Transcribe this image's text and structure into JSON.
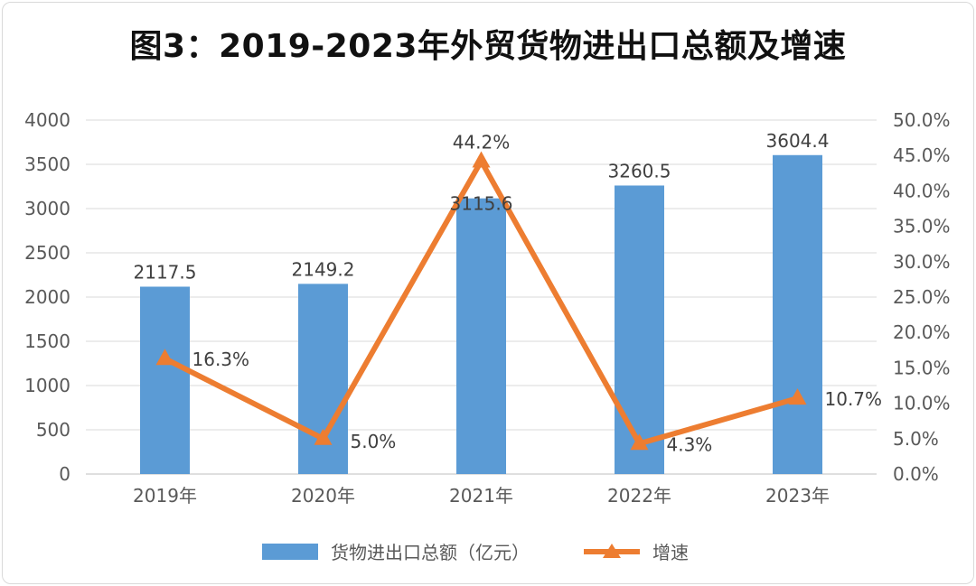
{
  "chart_data": {
    "type": "bar+line",
    "title": "图3：2019-2023年外贸货物进出口总额及增速",
    "categories": [
      "2019年",
      "2020年",
      "2021年",
      "2022年",
      "2023年"
    ],
    "series": [
      {
        "name": "货物进出口总额（亿元）",
        "type": "bar",
        "axis": "left",
        "values": [
          2117.5,
          2149.2,
          3115.6,
          3260.5,
          3604.4
        ],
        "labels": [
          "2117.5",
          "2149.2",
          "3115.6",
          "3260.5",
          "3604.4"
        ],
        "color": "#5B9BD5"
      },
      {
        "name": "增速",
        "type": "line",
        "axis": "right",
        "marker": "triangle",
        "values": [
          16.3,
          5.0,
          44.2,
          4.3,
          10.7
        ],
        "labels": [
          "16.3%",
          "5.0%",
          "44.2%",
          "4.3%",
          "10.7%"
        ],
        "color": "#ED7D31"
      }
    ],
    "left_axis": {
      "ylim": [
        0,
        4000
      ],
      "step": 500,
      "ticks": [
        "0",
        "500",
        "1000",
        "1500",
        "2000",
        "2500",
        "3000",
        "3500",
        "4000"
      ]
    },
    "right_axis": {
      "ylim": [
        0,
        50
      ],
      "step": 5,
      "ticks": [
        "0.0%",
        "5.0%",
        "10.0%",
        "15.0%",
        "20.0%",
        "25.0%",
        "30.0%",
        "35.0%",
        "40.0%",
        "45.0%",
        "50.0%"
      ]
    },
    "grid": true,
    "legend": "bottom"
  }
}
